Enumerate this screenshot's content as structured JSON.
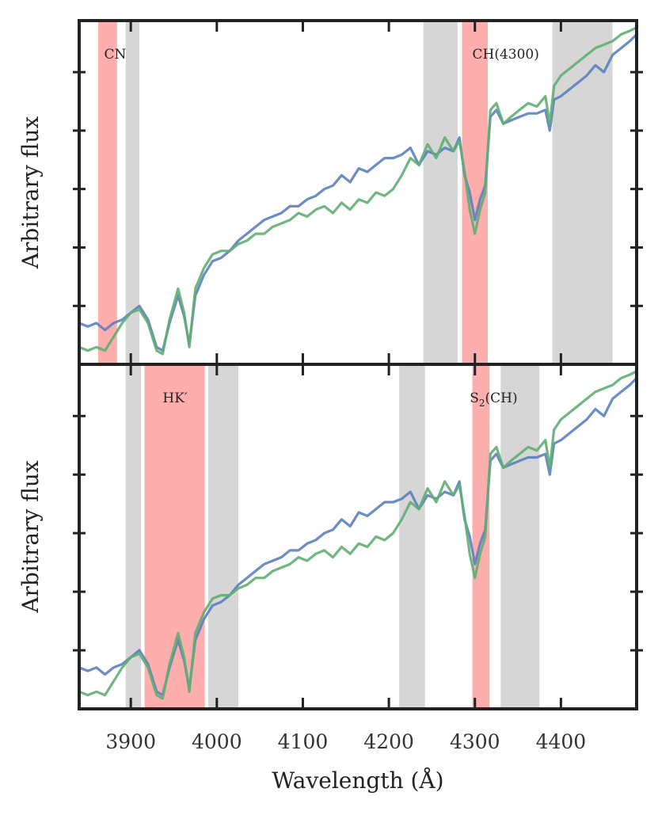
{
  "chart_data": {
    "type": "line",
    "xlabel": "Wavelength (Å)",
    "xlim": [
      3840,
      4488
    ],
    "xticks": [
      3900,
      4000,
      4100,
      4200,
      4300,
      4400
    ],
    "colors": {
      "blue": "#5b7fbf",
      "green": "#5fae73",
      "red_band": "#ff9a9a",
      "gray_band": "#c8c8c8"
    },
    "panels": [
      {
        "ylabel": "Arbitrary flux",
        "ylim": [
          0,
          1
        ],
        "bands": [
          {
            "x0": 3862,
            "x1": 3884,
            "kind": "index",
            "label": "CN",
            "label_x": 3869
          },
          {
            "x0": 3894,
            "x1": 3910,
            "kind": "continuum"
          },
          {
            "x0": 4240,
            "x1": 4280,
            "kind": "continuum"
          },
          {
            "x0": 4285,
            "x1": 4315,
            "kind": "index",
            "label": "CH(4300)",
            "label_x": 4297
          },
          {
            "x0": 4390,
            "x1": 4460,
            "kind": "continuum"
          }
        ],
        "series": [
          {
            "name": "blue spectrum",
            "color": "blue",
            "x": [
              3840,
              3850,
              3860,
              3870,
              3880,
              3890,
              3900,
              3910,
              3920,
              3930,
              3937,
              3945,
              3955,
              3962,
              3968,
              3975,
              3985,
              3995,
              4005,
              4015,
              4025,
              4035,
              4045,
              4055,
              4065,
              4075,
              4085,
              4095,
              4105,
              4115,
              4125,
              4135,
              4145,
              4155,
              4165,
              4175,
              4185,
              4195,
              4205,
              4215,
              4225,
              4235,
              4245,
              4255,
              4265,
              4275,
              4282,
              4288,
              4294,
              4300,
              4306,
              4312,
              4318,
              4325,
              4333,
              4342,
              4352,
              4362,
              4372,
              4382,
              4387,
              4392,
              4400,
              4410,
              4420,
              4430,
              4440,
              4450,
              4460,
              4470,
              4480,
              4488
            ],
            "y": [
              0.12,
              0.11,
              0.12,
              0.1,
              0.12,
              0.13,
              0.15,
              0.17,
              0.13,
              0.05,
              0.04,
              0.12,
              0.2,
              0.14,
              0.06,
              0.2,
              0.26,
              0.3,
              0.31,
              0.33,
              0.36,
              0.38,
              0.4,
              0.42,
              0.43,
              0.44,
              0.46,
              0.46,
              0.48,
              0.49,
              0.51,
              0.52,
              0.55,
              0.53,
              0.57,
              0.56,
              0.58,
              0.6,
              0.6,
              0.61,
              0.63,
              0.58,
              0.62,
              0.61,
              0.63,
              0.62,
              0.66,
              0.55,
              0.5,
              0.42,
              0.48,
              0.52,
              0.72,
              0.74,
              0.7,
              0.71,
              0.72,
              0.73,
              0.73,
              0.74,
              0.68,
              0.77,
              0.78,
              0.8,
              0.82,
              0.84,
              0.87,
              0.85,
              0.9,
              0.92,
              0.94,
              0.96
            ]
          },
          {
            "name": "green spectrum",
            "color": "green",
            "x": [
              3840,
              3850,
              3860,
              3870,
              3880,
              3890,
              3900,
              3910,
              3920,
              3930,
              3937,
              3945,
              3955,
              3962,
              3968,
              3975,
              3985,
              3995,
              4005,
              4015,
              4025,
              4035,
              4045,
              4055,
              4065,
              4075,
              4085,
              4095,
              4105,
              4115,
              4125,
              4135,
              4145,
              4155,
              4165,
              4175,
              4185,
              4195,
              4205,
              4215,
              4225,
              4235,
              4245,
              4255,
              4265,
              4275,
              4282,
              4288,
              4294,
              4300,
              4306,
              4312,
              4318,
              4325,
              4333,
              4342,
              4352,
              4362,
              4372,
              4382,
              4387,
              4392,
              4400,
              4410,
              4420,
              4430,
              4440,
              4450,
              4460,
              4470,
              4480,
              4488
            ],
            "y": [
              0.05,
              0.04,
              0.05,
              0.04,
              0.08,
              0.12,
              0.15,
              0.16,
              0.12,
              0.04,
              0.03,
              0.13,
              0.22,
              0.15,
              0.05,
              0.22,
              0.28,
              0.32,
              0.33,
              0.33,
              0.35,
              0.36,
              0.38,
              0.38,
              0.4,
              0.41,
              0.42,
              0.44,
              0.43,
              0.45,
              0.46,
              0.44,
              0.47,
              0.45,
              0.48,
              0.47,
              0.5,
              0.49,
              0.51,
              0.55,
              0.6,
              0.58,
              0.64,
              0.6,
              0.66,
              0.62,
              0.65,
              0.56,
              0.45,
              0.38,
              0.45,
              0.5,
              0.74,
              0.76,
              0.7,
              0.72,
              0.74,
              0.76,
              0.75,
              0.78,
              0.7,
              0.81,
              0.84,
              0.86,
              0.88,
              0.9,
              0.92,
              0.93,
              0.94,
              0.96,
              0.97,
              0.98
            ]
          }
        ]
      },
      {
        "ylabel": "Arbitrary flux",
        "ylim": [
          0,
          1
        ],
        "bands": [
          {
            "x0": 3894,
            "x1": 3912,
            "kind": "continuum"
          },
          {
            "x0": 3916,
            "x1": 3986,
            "kind": "index",
            "label": "HK′",
            "label_x": 3937
          },
          {
            "x0": 3990,
            "x1": 4025,
            "kind": "continuum"
          },
          {
            "x0": 4212,
            "x1": 4242,
            "kind": "continuum"
          },
          {
            "x0": 4297,
            "x1": 4317,
            "kind": "index",
            "label": "S",
            "label_sub": "2",
            "label_tail": "(CH)",
            "label_x": 4294
          },
          {
            "x0": 4330,
            "x1": 4375,
            "kind": "continuum"
          }
        ],
        "series": [
          {
            "name": "blue spectrum",
            "color": "blue",
            "x": [
              3840,
              3850,
              3860,
              3870,
              3880,
              3890,
              3900,
              3910,
              3920,
              3930,
              3937,
              3945,
              3955,
              3962,
              3968,
              3975,
              3985,
              3995,
              4005,
              4015,
              4025,
              4035,
              4045,
              4055,
              4065,
              4075,
              4085,
              4095,
              4105,
              4115,
              4125,
              4135,
              4145,
              4155,
              4165,
              4175,
              4185,
              4195,
              4205,
              4215,
              4225,
              4235,
              4245,
              4255,
              4265,
              4275,
              4282,
              4288,
              4294,
              4300,
              4306,
              4312,
              4318,
              4325,
              4333,
              4342,
              4352,
              4362,
              4372,
              4382,
              4387,
              4392,
              4400,
              4410,
              4420,
              4430,
              4440,
              4450,
              4460,
              4470,
              4480,
              4488
            ],
            "y": [
              0.12,
              0.11,
              0.12,
              0.1,
              0.12,
              0.13,
              0.15,
              0.17,
              0.13,
              0.05,
              0.04,
              0.12,
              0.2,
              0.14,
              0.06,
              0.2,
              0.26,
              0.3,
              0.31,
              0.33,
              0.36,
              0.38,
              0.4,
              0.42,
              0.43,
              0.44,
              0.46,
              0.46,
              0.48,
              0.49,
              0.51,
              0.52,
              0.55,
              0.53,
              0.57,
              0.56,
              0.58,
              0.6,
              0.6,
              0.61,
              0.63,
              0.58,
              0.62,
              0.61,
              0.63,
              0.62,
              0.66,
              0.55,
              0.5,
              0.42,
              0.48,
              0.52,
              0.72,
              0.74,
              0.7,
              0.71,
              0.72,
              0.73,
              0.73,
              0.74,
              0.68,
              0.77,
              0.78,
              0.8,
              0.82,
              0.84,
              0.87,
              0.85,
              0.9,
              0.92,
              0.94,
              0.96
            ]
          },
          {
            "name": "green spectrum",
            "color": "green",
            "x": [
              3840,
              3850,
              3860,
              3870,
              3880,
              3890,
              3900,
              3910,
              3920,
              3930,
              3937,
              3945,
              3955,
              3962,
              3968,
              3975,
              3985,
              3995,
              4005,
              4015,
              4025,
              4035,
              4045,
              4055,
              4065,
              4075,
              4085,
              4095,
              4105,
              4115,
              4125,
              4135,
              4145,
              4155,
              4165,
              4175,
              4185,
              4195,
              4205,
              4215,
              4225,
              4235,
              4245,
              4255,
              4265,
              4275,
              4282,
              4288,
              4294,
              4300,
              4306,
              4312,
              4318,
              4325,
              4333,
              4342,
              4352,
              4362,
              4372,
              4382,
              4387,
              4392,
              4400,
              4410,
              4420,
              4430,
              4440,
              4450,
              4460,
              4470,
              4480,
              4488
            ],
            "y": [
              0.05,
              0.04,
              0.05,
              0.04,
              0.08,
              0.12,
              0.15,
              0.16,
              0.12,
              0.04,
              0.03,
              0.13,
              0.22,
              0.15,
              0.05,
              0.22,
              0.28,
              0.32,
              0.33,
              0.33,
              0.35,
              0.36,
              0.38,
              0.38,
              0.4,
              0.41,
              0.42,
              0.44,
              0.43,
              0.45,
              0.46,
              0.44,
              0.47,
              0.45,
              0.48,
              0.47,
              0.5,
              0.49,
              0.51,
              0.55,
              0.6,
              0.58,
              0.64,
              0.6,
              0.66,
              0.62,
              0.65,
              0.56,
              0.45,
              0.38,
              0.45,
              0.5,
              0.74,
              0.76,
              0.7,
              0.72,
              0.74,
              0.76,
              0.75,
              0.78,
              0.7,
              0.81,
              0.84,
              0.86,
              0.88,
              0.9,
              0.92,
              0.93,
              0.94,
              0.96,
              0.97,
              0.98
            ]
          }
        ]
      }
    ]
  }
}
